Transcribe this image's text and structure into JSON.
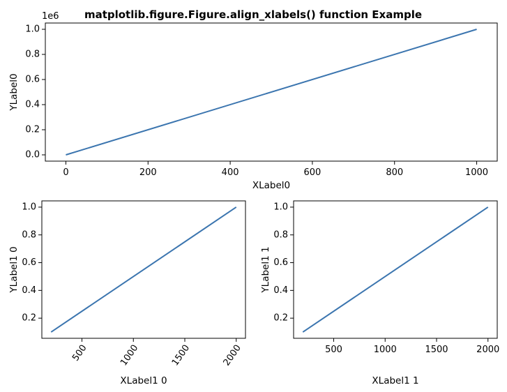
{
  "figure": {
    "suptitle": "matplotlib.figure.Figure.align_xlabels() function Example"
  },
  "colors": {
    "line": "#3b75af",
    "axes": "#000000",
    "background": "#ffffff"
  },
  "chart_data": [
    {
      "type": "line",
      "title": "",
      "xlabel": "XLabel0",
      "ylabel": "YLabel0",
      "xlim": [
        -50,
        1050
      ],
      "ylim": [
        -50000,
        1050000
      ],
      "xticks": [
        0,
        200,
        400,
        600,
        800,
        1000
      ],
      "yticks": [
        0,
        200000,
        400000,
        600000,
        800000,
        1000000
      ],
      "xtick_labels": [
        "0",
        "200",
        "400",
        "600",
        "800",
        "1000"
      ],
      "ytick_labels": [
        "0.0",
        "0.2",
        "0.4",
        "0.6",
        "0.8",
        "1.0"
      ],
      "y_offset_text": "1e6",
      "xtick_rotation": 0,
      "grid": false,
      "series": [
        {
          "x": [
            0,
            1000
          ],
          "y": [
            0,
            1000000
          ]
        }
      ]
    },
    {
      "type": "line",
      "title": "",
      "xlabel": "XLabel1 0",
      "ylabel": "YLabel1 0",
      "xlim": [
        110,
        2090
      ],
      "ylim": [
        0.055,
        1.045
      ],
      "xticks": [
        500,
        1000,
        1500,
        2000
      ],
      "yticks": [
        0.2,
        0.4,
        0.6,
        0.8,
        1.0
      ],
      "xtick_labels": [
        "500",
        "1000",
        "1500",
        "2000"
      ],
      "ytick_labels": [
        "0.2",
        "0.4",
        "0.6",
        "0.8",
        "1.0"
      ],
      "xtick_rotation": 55,
      "grid": false,
      "series": [
        {
          "x": [
            200,
            2000
          ],
          "y": [
            0.1,
            1.0
          ]
        }
      ]
    },
    {
      "type": "line",
      "title": "",
      "xlabel": "XLabel1 1",
      "ylabel": "YLabel1 1",
      "xlim": [
        110,
        2090
      ],
      "ylim": [
        0.055,
        1.045
      ],
      "xticks": [
        500,
        1000,
        1500,
        2000
      ],
      "yticks": [
        0.2,
        0.4,
        0.6,
        0.8,
        1.0
      ],
      "xtick_labels": [
        "500",
        "1000",
        "1500",
        "2000"
      ],
      "ytick_labels": [
        "0.2",
        "0.4",
        "0.6",
        "0.8",
        "1.0"
      ],
      "xtick_rotation": 0,
      "grid": false,
      "series": [
        {
          "x": [
            200,
            2000
          ],
          "y": [
            0.1,
            1.0
          ]
        }
      ]
    }
  ]
}
